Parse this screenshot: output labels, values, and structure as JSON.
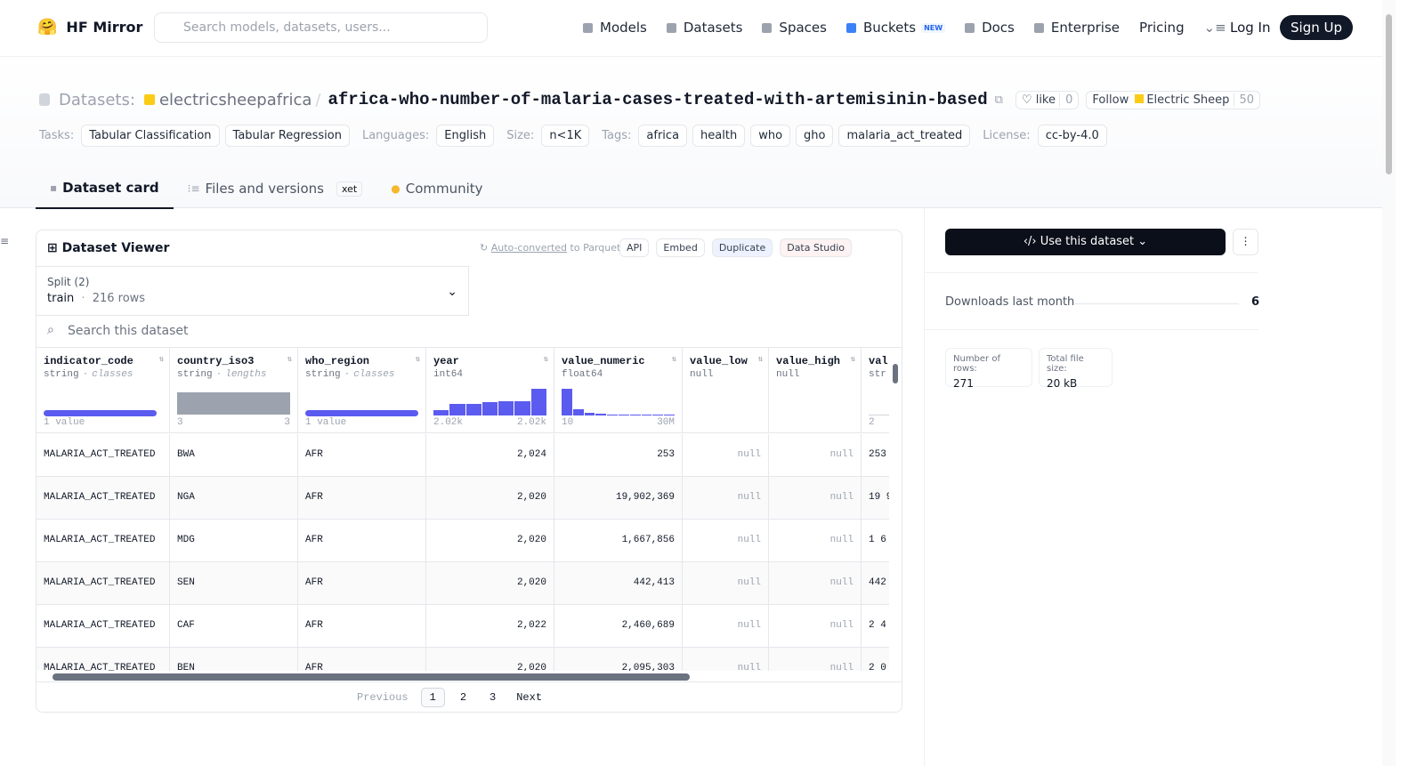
{
  "header": {
    "brand": "HF Mirror",
    "search_placeholder": "Search models, datasets, users...",
    "nav": [
      "Models",
      "Datasets",
      "Spaces",
      "Buckets",
      "Docs",
      "Enterprise",
      "Pricing"
    ],
    "new_badge": "NEW",
    "login": "Log In",
    "signup": "Sign Up"
  },
  "repo": {
    "kind": "Datasets:",
    "owner": "electricsheepafrica",
    "separator": "/",
    "name": "africa-who-number-of-malaria-cases-treated-with-artemisinin-based",
    "like": "like",
    "likes": 0,
    "follow": "Follow",
    "org": "Electric Sheep",
    "followers": 50
  },
  "tag_groups": [
    {
      "label": "Tasks:",
      "items": [
        "Tabular Classification",
        "Tabular Regression"
      ]
    },
    {
      "label": "Languages:",
      "items": [
        "English"
      ]
    },
    {
      "label": "Size:",
      "items": [
        "n<1K"
      ]
    },
    {
      "label": "Tags:",
      "items": [
        "africa",
        "health",
        "who",
        "gho",
        "malaria_act_treated"
      ]
    },
    {
      "label": "License:",
      "items": [
        "cc-by-4.0"
      ]
    }
  ],
  "tabs": {
    "items": [
      "Dataset card",
      "Files and versions",
      "Community"
    ],
    "xet": "xet"
  },
  "viewer": {
    "title": "Dataset Viewer",
    "auto": "Auto-converted",
    "to_parquet": "to Parquet",
    "buttons": [
      "API",
      "Embed",
      "Duplicate",
      "Data Studio"
    ],
    "split_label": "Split (2)",
    "split": "train",
    "dot": "·",
    "split_rows": "216 rows",
    "search": "Search this dataset",
    "columns": [
      {
        "name": "indicator_code",
        "dtype": "string",
        "kind": "classes",
        "min": "1 value"
      },
      {
        "name": "country_iso3",
        "dtype": "string",
        "kind": "lengths",
        "min": "3",
        "max": "3"
      },
      {
        "name": "who_region",
        "dtype": "string",
        "kind": "classes",
        "min": "1 value"
      },
      {
        "name": "year",
        "dtype": "int64",
        "min": "2.02k",
        "max": "2.02k"
      },
      {
        "name": "value_numeric",
        "dtype": "float64",
        "min": "10",
        "max": "30M"
      },
      {
        "name": "value_low",
        "dtype": "null"
      },
      {
        "name": "value_high",
        "dtype": "null"
      },
      {
        "name": "val",
        "dtype": "str",
        "min": "2"
      }
    ],
    "rows": [
      [
        "MALARIA_ACT_TREATED",
        "BWA",
        "AFR",
        "2,024",
        "253",
        "null",
        "null",
        "253"
      ],
      [
        "MALARIA_ACT_TREATED",
        "NGA",
        "AFR",
        "2,020",
        "19,902,369",
        "null",
        "null",
        "19 9"
      ],
      [
        "MALARIA_ACT_TREATED",
        "MDG",
        "AFR",
        "2,020",
        "1,667,856",
        "null",
        "null",
        "1 6"
      ],
      [
        "MALARIA_ACT_TREATED",
        "SEN",
        "AFR",
        "2,020",
        "442,413",
        "null",
        "null",
        "442"
      ],
      [
        "MALARIA_ACT_TREATED",
        "CAF",
        "AFR",
        "2,022",
        "2,460,689",
        "null",
        "null",
        "2 4"
      ],
      [
        "MALARIA_ACT_TREATED",
        "BEN",
        "AFR",
        "2,020",
        "2,095,303",
        "null",
        "null",
        "2 0"
      ]
    ],
    "pagination": {
      "previous": "Previous",
      "pages": [
        "1",
        "2",
        "3"
      ],
      "next": "Next"
    }
  },
  "sidebar": {
    "use": "Use this dataset",
    "downloads_label": "Downloads last month",
    "downloads": 6,
    "rows_label": "Number of rows:",
    "rows": 271,
    "size_label": "Total file size:",
    "size": "20 kB"
  }
}
